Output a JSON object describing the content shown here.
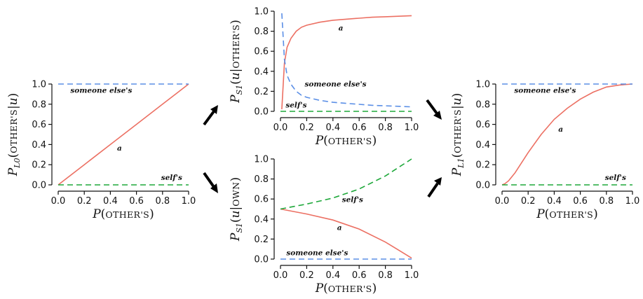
{
  "colors": {
    "a": "#ec7063",
    "someone_else": "#5b8fe6",
    "self": "#1ea83a"
  },
  "chart_data": [
    {
      "type": "line",
      "title": "",
      "xlabel": "P(OTHER'S)",
      "ylabel": "P_L0(OTHER'S|u)",
      "ylabel_parts": [
        "P",
        "L0",
        "(",
        "OTHER'S",
        "|u)"
      ],
      "xlim": [
        0,
        1
      ],
      "ylim": [
        0,
        1
      ],
      "xticks": [
        "0.0",
        "0.2",
        "0.4",
        "0.6",
        "0.8",
        "1.0"
      ],
      "yticks": [
        "0.0",
        "0.2",
        "0.4",
        "0.6",
        "0.8",
        "1.0"
      ],
      "grid": false,
      "series": [
        {
          "name": "a",
          "style": "solid",
          "color_key": "a",
          "x": [
            0,
            0.2,
            0.4,
            0.6,
            0.8,
            1.0
          ],
          "y": [
            0,
            0.2,
            0.4,
            0.6,
            0.8,
            1.0
          ],
          "label_x": 0.47,
          "label_y": 0.36
        },
        {
          "name": "someone else's",
          "style": "dashed",
          "color_key": "someone_else",
          "x": [
            0,
            0.2,
            0.4,
            0.6,
            0.8,
            1.0
          ],
          "y": [
            1,
            1,
            1,
            1,
            1,
            1
          ],
          "label_x": 0.33,
          "label_y": 0.935
        },
        {
          "name": "self's",
          "style": "dashed",
          "color_key": "self",
          "x": [
            0,
            0.2,
            0.4,
            0.6,
            0.8,
            1.0
          ],
          "y": [
            0,
            0,
            0,
            0,
            0,
            0
          ],
          "label_x": 0.87,
          "label_y": 0.07
        }
      ]
    },
    {
      "type": "line",
      "title": "",
      "xlabel": "P(OTHER'S)",
      "ylabel": "P_S1(u|OTHER'S)",
      "ylabel_parts": [
        "P",
        "S1",
        "(u|",
        "OTHER'S",
        ")"
      ],
      "xlim": [
        0,
        1
      ],
      "ylim": [
        0,
        1
      ],
      "xticks": [
        "0.0",
        "0.2",
        "0.4",
        "0.6",
        "0.8",
        "1.0"
      ],
      "yticks": [
        "0.0",
        "0.2",
        "0.4",
        "0.6",
        "0.8",
        "1.0"
      ],
      "grid": false,
      "series": [
        {
          "name": "a",
          "style": "solid",
          "color_key": "a",
          "x": [
            0.01,
            0.03,
            0.05,
            0.08,
            0.12,
            0.16,
            0.2,
            0.3,
            0.4,
            0.5,
            0.6,
            0.7,
            0.8,
            0.9,
            1.0
          ],
          "y": [
            0.02,
            0.48,
            0.64,
            0.73,
            0.8,
            0.84,
            0.86,
            0.89,
            0.91,
            0.92,
            0.93,
            0.94,
            0.945,
            0.95,
            0.955
          ],
          "label_x": 0.46,
          "label_y": 0.83
        },
        {
          "name": "someone else's",
          "style": "dashed",
          "color_key": "someone_else",
          "x": [
            0.01,
            0.03,
            0.05,
            0.08,
            0.12,
            0.16,
            0.2,
            0.3,
            0.4,
            0.5,
            0.6,
            0.7,
            0.8,
            0.9,
            1.0
          ],
          "y": [
            0.98,
            0.52,
            0.36,
            0.27,
            0.2,
            0.16,
            0.14,
            0.11,
            0.09,
            0.08,
            0.07,
            0.06,
            0.055,
            0.05,
            0.045
          ],
          "label_x": 0.42,
          "label_y": 0.27
        },
        {
          "name": "self's",
          "style": "dashed",
          "color_key": "self",
          "x": [
            0,
            0.2,
            0.4,
            0.6,
            0.8,
            1.0
          ],
          "y": [
            0,
            0,
            0,
            0,
            0,
            0
          ],
          "label_x": 0.12,
          "label_y": 0.06
        }
      ]
    },
    {
      "type": "line",
      "title": "",
      "xlabel": "P(OTHER'S)",
      "ylabel": "P_S1(u|OWN)",
      "ylabel_parts": [
        "P",
        "S1",
        "(u|",
        "OWN",
        ")"
      ],
      "xlim": [
        0,
        1
      ],
      "ylim": [
        0,
        1
      ],
      "xticks": [
        "0.0",
        "0.2",
        "0.4",
        "0.6",
        "0.8",
        "1.0"
      ],
      "yticks": [
        "0.0",
        "0.2",
        "0.4",
        "0.6",
        "0.8",
        "1.0"
      ],
      "grid": false,
      "series": [
        {
          "name": "a",
          "style": "solid",
          "color_key": "a",
          "x": [
            0,
            0.2,
            0.4,
            0.6,
            0.8,
            0.9,
            1.0
          ],
          "y": [
            0.5,
            0.45,
            0.39,
            0.3,
            0.17,
            0.09,
            0.01
          ],
          "label_x": 0.45,
          "label_y": 0.31
        },
        {
          "name": "someone else's",
          "style": "dashed",
          "color_key": "someone_else",
          "x": [
            0,
            0.2,
            0.4,
            0.6,
            0.8,
            1.0
          ],
          "y": [
            0,
            0,
            0,
            0,
            0,
            0
          ],
          "label_x": 0.28,
          "label_y": 0.06
        },
        {
          "name": "self's",
          "style": "dashed",
          "color_key": "self",
          "x": [
            0,
            0.2,
            0.4,
            0.6,
            0.8,
            1.0
          ],
          "y": [
            0.5,
            0.55,
            0.61,
            0.7,
            0.83,
            1.0
          ],
          "label_x": 0.55,
          "label_y": 0.59
        }
      ]
    },
    {
      "type": "line",
      "title": "",
      "xlabel": "P(OTHER'S)",
      "ylabel": "P_L1(OTHER'S|u)",
      "ylabel_parts": [
        "P",
        "L1",
        "(",
        "OTHER'S",
        "|u)"
      ],
      "xlim": [
        0,
        1
      ],
      "ylim": [
        0,
        1
      ],
      "xticks": [
        "0.0",
        "0.2",
        "0.4",
        "0.6",
        "0.8",
        "1.0"
      ],
      "yticks": [
        "0.0",
        "0.2",
        "0.4",
        "0.6",
        "0.8",
        "1.0"
      ],
      "grid": false,
      "series": [
        {
          "name": "a",
          "style": "solid",
          "color_key": "a",
          "x": [
            0,
            0.02,
            0.05,
            0.1,
            0.15,
            0.2,
            0.3,
            0.4,
            0.5,
            0.6,
            0.7,
            0.8,
            0.9,
            1.0
          ],
          "y": [
            0,
            0.01,
            0.04,
            0.12,
            0.22,
            0.32,
            0.5,
            0.65,
            0.76,
            0.85,
            0.92,
            0.97,
            0.99,
            1.0
          ],
          "label_x": 0.45,
          "label_y": 0.55
        },
        {
          "name": "someone else's",
          "style": "dashed",
          "color_key": "someone_else",
          "x": [
            0,
            0.2,
            0.4,
            0.6,
            0.8,
            1.0
          ],
          "y": [
            1,
            1,
            1,
            1,
            1,
            1
          ],
          "label_x": 0.33,
          "label_y": 0.935
        },
        {
          "name": "self's",
          "style": "dashed",
          "color_key": "self",
          "x": [
            0,
            0.2,
            0.4,
            0.6,
            0.8,
            1.0
          ],
          "y": [
            0,
            0,
            0,
            0,
            0,
            0
          ],
          "label_x": 0.87,
          "label_y": 0.07
        }
      ]
    }
  ]
}
